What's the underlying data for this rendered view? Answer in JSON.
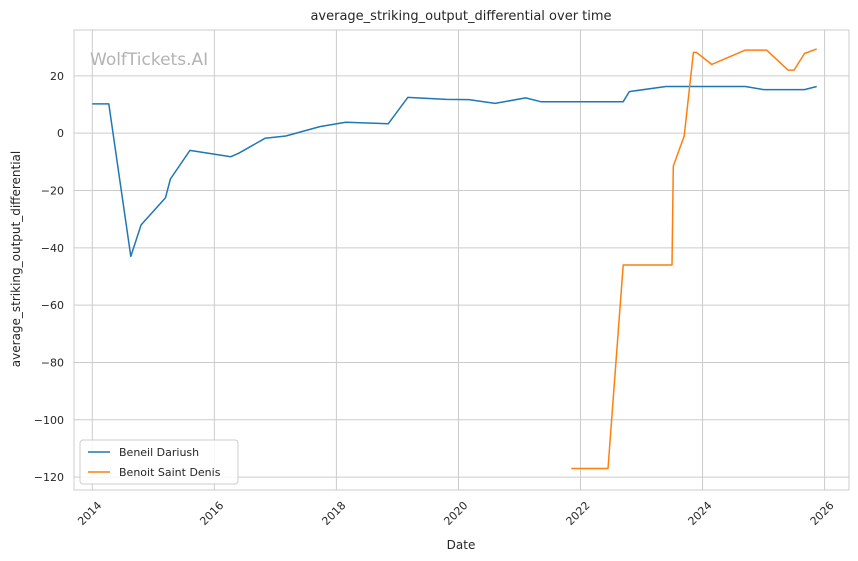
{
  "chart_data": {
    "type": "line",
    "title": "average_striking_output_differential over time",
    "xlabel": "Date",
    "ylabel": "average_striking_output_differential",
    "watermark": "WolfTickets.AI",
    "xlim": [
      2013.7,
      2026.4
    ],
    "ylim": [
      -124.5,
      36.0
    ],
    "x_ticks": [
      2014,
      2016,
      2018,
      2020,
      2022,
      2024,
      2026
    ],
    "x_tick_labels": [
      "2014",
      "2016",
      "2018",
      "2020",
      "2022",
      "2024",
      "2026"
    ],
    "y_ticks": [
      -120,
      -100,
      -80,
      -60,
      -40,
      -20,
      0,
      20
    ],
    "y_tick_labels": [
      "−120",
      "−100",
      "−80",
      "−60",
      "−40",
      "−20",
      "0",
      "20"
    ],
    "grid": true,
    "legend_position": "lower-left",
    "series": [
      {
        "name": "Beneil Dariush",
        "color": "#1f77b4",
        "x": [
          2014.0,
          2014.27,
          2014.63,
          2014.8,
          2015.2,
          2015.28,
          2015.6,
          2016.27,
          2016.4,
          2016.83,
          2017.17,
          2017.73,
          2018.15,
          2018.85,
          2019.17,
          2019.8,
          2020.17,
          2020.6,
          2021.1,
          2021.35,
          2022.0,
          2022.7,
          2022.8,
          2023.4,
          2023.8,
          2024.7,
          2025.0,
          2025.67,
          2025.87
        ],
        "y": [
          10.2,
          10.2,
          -43.0,
          -32.0,
          -22.5,
          -16.0,
          -6.0,
          -8.2,
          -7.0,
          -1.8,
          -1.0,
          2.3,
          3.8,
          3.3,
          12.5,
          11.8,
          11.7,
          10.4,
          12.3,
          11.0,
          11.0,
          11.0,
          14.5,
          16.3,
          16.3,
          16.3,
          15.2,
          15.2,
          16.3
        ]
      },
      {
        "name": "Benoit Saint Denis",
        "color": "#ff7f0e",
        "x": [
          2021.85,
          2022.45,
          2022.7,
          2023.5,
          2023.52,
          2023.7,
          2023.85,
          2023.9,
          2024.15,
          2024.7,
          2025.05,
          2025.4,
          2025.5,
          2025.67,
          2025.87
        ],
        "y": [
          -117.0,
          -117.0,
          -46.0,
          -46.0,
          -11.5,
          -1.0,
          28.2,
          28.2,
          24.0,
          29.0,
          29.0,
          22.0,
          22.0,
          27.8,
          29.4
        ]
      }
    ]
  }
}
